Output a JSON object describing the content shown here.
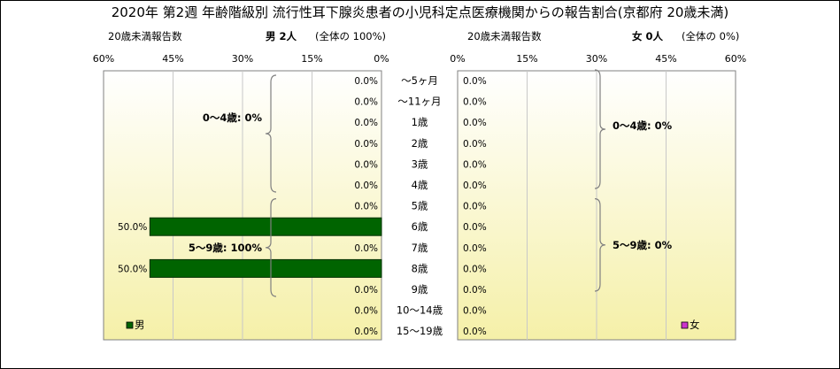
{
  "title": "2020年 第2週 年齢階級別 流行性耳下腺炎患者の小児科定点医療機関からの報告割合(京都府 20歳未満)",
  "left_panel": {
    "header_label": "20歳未満報告数",
    "sex_count": "男 2人",
    "share": "(全体の 100%)",
    "legend": "男",
    "group_labels": [
      "0～4歳: 0%",
      "5～9歳: 100%"
    ]
  },
  "right_panel": {
    "header_label": "20歳未満報告数",
    "sex_count": "女 0人",
    "share": "(全体の 0%)",
    "legend": "女",
    "group_labels": [
      "0～4歳: 0%",
      "5～9歳: 0%"
    ]
  },
  "colors": {
    "male_bar": "#006400",
    "female_bar": "#cc33cc",
    "plot_bg_top": "#ffffff",
    "plot_bg_bottom": "#f5f0a8"
  },
  "chart_data": {
    "type": "bar",
    "orientation": "horizontal-population-pyramid",
    "categories": [
      "～5ヶ月",
      "～11ヶ月",
      "1歳",
      "2歳",
      "3歳",
      "4歳",
      "5歳",
      "6歳",
      "7歳",
      "8歳",
      "9歳",
      "10～14歳",
      "15～19歳"
    ],
    "x_ticks": [
      "60%",
      "45%",
      "30%",
      "15%",
      "0%"
    ],
    "x_ticks_right": [
      "0%",
      "15%",
      "30%",
      "45%",
      "60%"
    ],
    "xlim": [
      0,
      60
    ],
    "series": [
      {
        "name": "男",
        "values": [
          0,
          0,
          0,
          0,
          0,
          0,
          0,
          50,
          0,
          50,
          0,
          0,
          0
        ],
        "labels": [
          "0.0%",
          "0.0%",
          "0.0%",
          "0.0%",
          "0.0%",
          "0.0%",
          "0.0%",
          "50.0%",
          "0.0%",
          "50.0%",
          "0.0%",
          "0.0%",
          "0.0%"
        ]
      },
      {
        "name": "女",
        "values": [
          0,
          0,
          0,
          0,
          0,
          0,
          0,
          0,
          0,
          0,
          0,
          0,
          0
        ],
        "labels": [
          "0.0%",
          "0.0%",
          "0.0%",
          "0.0%",
          "0.0%",
          "0.0%",
          "0.0%",
          "0.0%",
          "0.0%",
          "0.0%",
          "0.0%",
          "0.0%",
          "0.0%"
        ]
      }
    ]
  }
}
